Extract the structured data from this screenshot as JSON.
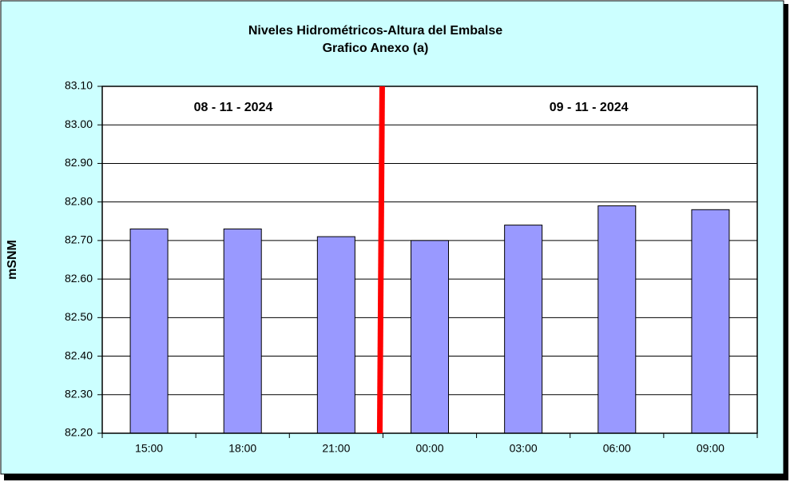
{
  "chart_data": {
    "type": "bar",
    "title": "Niveles Hidrométricos-Altura del Embalse",
    "subtitle": "Grafico Anexo (a)",
    "y_label": "mSNM",
    "annotations": [
      "08 - 11 - 2024",
      "09 - 11 - 2024"
    ],
    "categories": [
      "15:00",
      "18:00",
      "21:00",
      "00:00",
      "03:00",
      "06:00",
      "09:00"
    ],
    "values": [
      82.73,
      82.73,
      82.71,
      82.7,
      82.74,
      82.79,
      82.78
    ],
    "color": "#9999ff",
    "ylim": [
      82.2,
      83.1
    ],
    "yticks": [
      {
        "value": 82.2,
        "label": "82.20"
      },
      {
        "value": 82.3,
        "label": "82.30"
      },
      {
        "value": 82.4,
        "label": "82.40"
      },
      {
        "value": 82.5,
        "label": "82.50"
      },
      {
        "value": 82.6,
        "label": "82.60"
      },
      {
        "value": 82.7,
        "label": "82.70"
      },
      {
        "value": 82.8,
        "label": "82.80"
      },
      {
        "value": 82.9,
        "label": "82.90"
      },
      {
        "value": 83,
        "label": "83.00"
      },
      {
        "value": 83.1,
        "label": "83.10"
      }
    ],
    "grid": true
  }
}
